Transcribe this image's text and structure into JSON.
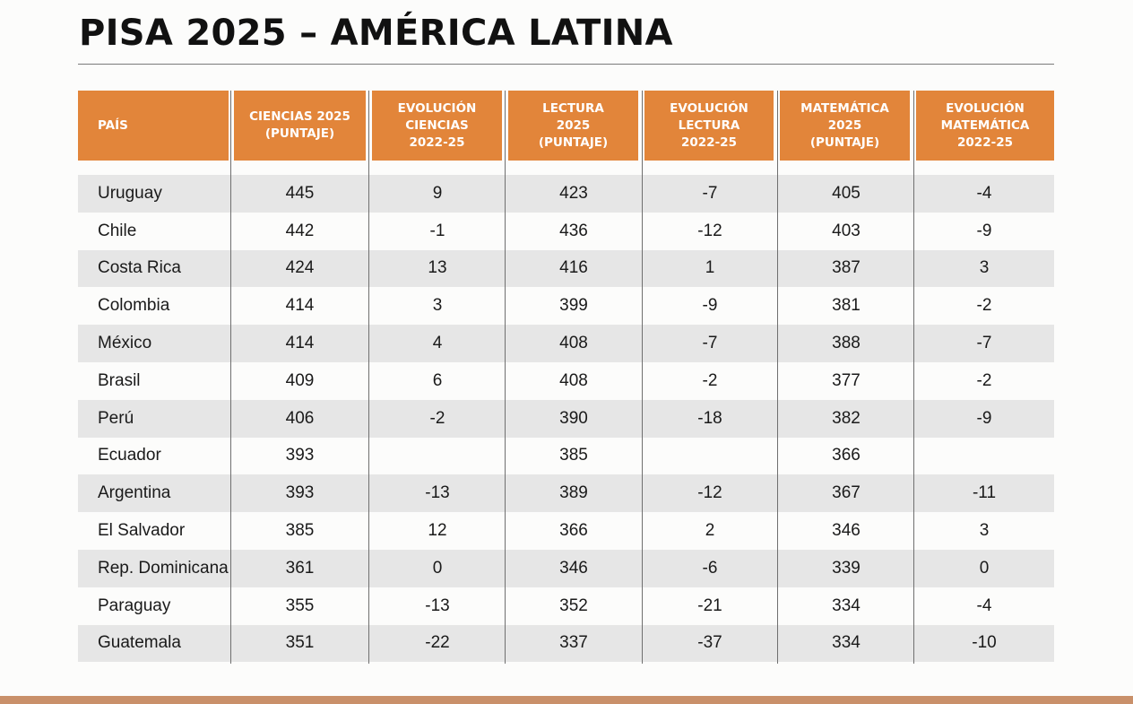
{
  "title": "PISA 2025 – AMÉRICA LATINA",
  "colors": {
    "header_bg": "#e2853a",
    "header_text": "#ffffff",
    "row_shade": "#e6e6e6",
    "footer_bar": "#c9906a"
  },
  "table": {
    "headers": [
      "PAÍS",
      "CIENCIAS 2025\n(PUNTAJE)",
      "EVOLUCIÓN\nCIENCIAS\n2022-25",
      "LECTURA\n2025\n(PUNTAJE)",
      "EVOLUCIÓN\nLECTURA\n2022-25",
      "MATEMÁTICA\n2025\n(PUNTAJE)",
      "EVOLUCIÓN\nMATEMÁTICA\n2022-25"
    ],
    "rows": [
      [
        "Uruguay",
        "445",
        "9",
        "423",
        "-7",
        "405",
        "-4"
      ],
      [
        "Chile",
        "442",
        "-1",
        "436",
        "-12",
        "403",
        "-9"
      ],
      [
        "Costa Rica",
        "424",
        "13",
        "416",
        "1",
        "387",
        "3"
      ],
      [
        "Colombia",
        "414",
        "3",
        "399",
        "-9",
        "381",
        "-2"
      ],
      [
        "México",
        "414",
        "4",
        "408",
        "-7",
        "388",
        "-7"
      ],
      [
        "Brasil",
        "409",
        "6",
        "408",
        "-2",
        "377",
        "-2"
      ],
      [
        "Perú",
        "406",
        "-2",
        "390",
        "-18",
        "382",
        "-9"
      ],
      [
        "Ecuador",
        "393",
        "",
        "385",
        "",
        "366",
        ""
      ],
      [
        "Argentina",
        "393",
        "-13",
        "389",
        "-12",
        "367",
        "-11"
      ],
      [
        "El Salvador",
        "385",
        "12",
        "366",
        "2",
        "346",
        "3"
      ],
      [
        "Rep. Dominicana",
        "361",
        "0",
        "346",
        "-6",
        "339",
        "0"
      ],
      [
        "Paraguay",
        "355",
        "-13",
        "352",
        "-21",
        "334",
        "-4"
      ],
      [
        "Guatemala",
        "351",
        "-22",
        "337",
        "-37",
        "334",
        "-10"
      ]
    ]
  }
}
